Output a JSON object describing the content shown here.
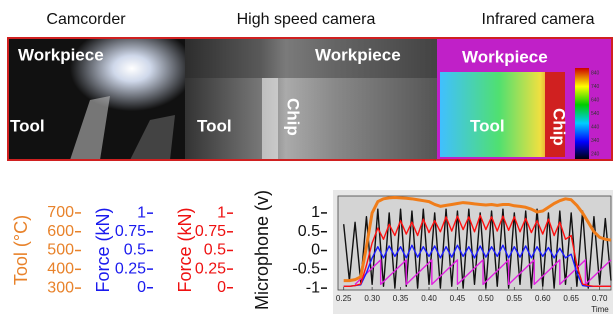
{
  "panels": [
    {
      "title": "Camcorder",
      "labels": [
        "Workpiece",
        "Tool"
      ]
    },
    {
      "title": "High speed camera",
      "labels": [
        "Workpiece",
        "Tool",
        "Chip"
      ]
    },
    {
      "title": "Infrared camera",
      "labels": [
        "Workpiece",
        "Tool",
        "Chip"
      ],
      "colorbar_ticks": [
        840,
        740,
        640,
        540,
        440,
        340,
        240
      ]
    }
  ],
  "chart_data": {
    "type": "line",
    "x": [
      0.25,
      0.26,
      0.27,
      0.28,
      0.29,
      0.3,
      0.31,
      0.32,
      0.33,
      0.34,
      0.35,
      0.36,
      0.37,
      0.38,
      0.39,
      0.4,
      0.41,
      0.42,
      0.43,
      0.44,
      0.45,
      0.46,
      0.47,
      0.48,
      0.49,
      0.5,
      0.51,
      0.52,
      0.53,
      0.54,
      0.55,
      0.56,
      0.57,
      0.58,
      0.59,
      0.6,
      0.61,
      0.62,
      0.63,
      0.64,
      0.65,
      0.66,
      0.67,
      0.68,
      0.69,
      0.7,
      0.71,
      0.72
    ],
    "xlim": [
      0.24,
      0.72
    ],
    "xticks": [
      0.25,
      {
        "value": 0.3,
        "label": "0.30"
      },
      0.35,
      {
        "value": 0.4,
        "label": "0.40"
      },
      0.45,
      {
        "value": 0.5,
        "label": "0.50"
      },
      0.55,
      {
        "value": 0.6,
        "label": "0.60"
      },
      0.65,
      {
        "value": 0.7,
        "label": "0.70"
      }
    ],
    "xlabel": "Time",
    "axes": [
      {
        "label": "Tool (°C)",
        "color": "#e8822a",
        "ylim": [
          290,
          790
        ],
        "yticks": [
          700,
          600,
          500,
          400,
          300
        ]
      },
      {
        "label": "Force (kN)",
        "color": "#1a1aee",
        "ylim": [
          -0.03,
          1.23
        ],
        "yticks": [
          1,
          0.75,
          0.5,
          0.25,
          0
        ]
      },
      {
        "label": "Force (kN)",
        "color": "#ee1111",
        "ylim": [
          -0.03,
          1.23
        ],
        "yticks": [
          1,
          0.75,
          0.5,
          0.25,
          0
        ]
      },
      {
        "label": "Microphone (v)",
        "color": "#111111",
        "ylim": [
          -1.05,
          1.45
        ],
        "yticks": [
          1,
          0.5,
          0,
          -0.5,
          -1
        ]
      }
    ],
    "series": [
      {
        "color": "#111111",
        "axis": 3,
        "values": [
          0.7,
          -0.8,
          0.75,
          -0.85,
          0.9,
          -0.9,
          1.1,
          -0.95,
          1.0,
          -1.0,
          1.1,
          -0.95,
          1.05,
          -1.0,
          1.1,
          -0.9,
          1.0,
          -1.0,
          1.1,
          -0.95,
          1.05,
          -1.0,
          1.1,
          -0.9,
          1.0,
          -1.0,
          1.05,
          -0.95,
          1.1,
          -1.0,
          1.0,
          -0.9,
          1.05,
          -1.0,
          1.1,
          -0.95,
          1.0,
          -1.0,
          1.05,
          -0.9,
          1.0,
          -0.95,
          1.05,
          -1.0,
          0.9,
          -0.9,
          0.85,
          -0.8
        ]
      },
      {
        "color": "#e020e0",
        "axis": 3,
        "x": [
          0.27,
          0.315,
          0.315,
          0.36,
          0.36,
          0.405,
          0.405,
          0.45,
          0.45,
          0.495,
          0.495,
          0.54,
          0.54,
          0.585,
          0.585,
          0.63,
          0.63,
          0.675,
          0.675,
          0.72
        ],
        "values": [
          -0.9,
          -0.25,
          -0.9,
          -0.25,
          -0.9,
          -0.25,
          -0.9,
          -0.25,
          -0.9,
          -0.25,
          -0.9,
          -0.25,
          -0.9,
          -0.25,
          -0.9,
          -0.25,
          -0.9,
          -0.25,
          -0.9,
          -0.25
        ]
      },
      {
        "color": "#1a1aff",
        "axis": 1,
        "values": [
          0.02,
          0.02,
          0.03,
          0.04,
          0.2,
          0.4,
          0.55,
          0.4,
          0.56,
          0.42,
          0.55,
          0.4,
          0.57,
          0.41,
          0.55,
          0.42,
          0.56,
          0.4,
          0.55,
          0.41,
          0.57,
          0.42,
          0.55,
          0.4,
          0.56,
          0.41,
          0.55,
          0.42,
          0.57,
          0.4,
          0.55,
          0.41,
          0.56,
          0.4,
          0.55,
          0.42,
          0.54,
          0.4,
          0.53,
          0.4,
          0.45,
          0.2,
          0.03,
          0.02,
          0.02,
          0.02,
          0.02,
          0.02
        ]
      },
      {
        "color": "#ff1010",
        "axis": 2,
        "values": [
          0.02,
          0.02,
          0.03,
          0.05,
          0.3,
          0.6,
          0.8,
          0.65,
          0.85,
          0.7,
          0.9,
          0.72,
          0.88,
          0.7,
          0.92,
          0.74,
          0.9,
          0.75,
          0.95,
          0.76,
          0.96,
          0.78,
          0.95,
          0.75,
          0.97,
          0.78,
          0.95,
          0.76,
          0.96,
          0.77,
          0.95,
          0.75,
          0.93,
          0.74,
          0.9,
          0.72,
          0.92,
          0.7,
          0.88,
          0.65,
          0.7,
          0.3,
          0.05,
          0.03,
          0.02,
          0.02,
          0.02,
          0.02
        ]
      },
      {
        "color": "#f07d1a",
        "axis": 0,
        "values": [
          340,
          340,
          345,
          360,
          520,
          700,
          760,
          775,
          780,
          782,
          780,
          778,
          775,
          770,
          765,
          760,
          745,
          735,
          740,
          745,
          750,
          755,
          752,
          748,
          745,
          742,
          745,
          740,
          745,
          745,
          738,
          735,
          730,
          720,
          705,
          710,
          730,
          750,
          765,
          775,
          770,
          740,
          700,
          650,
          600,
          570,
          560,
          555
        ]
      }
    ]
  }
}
